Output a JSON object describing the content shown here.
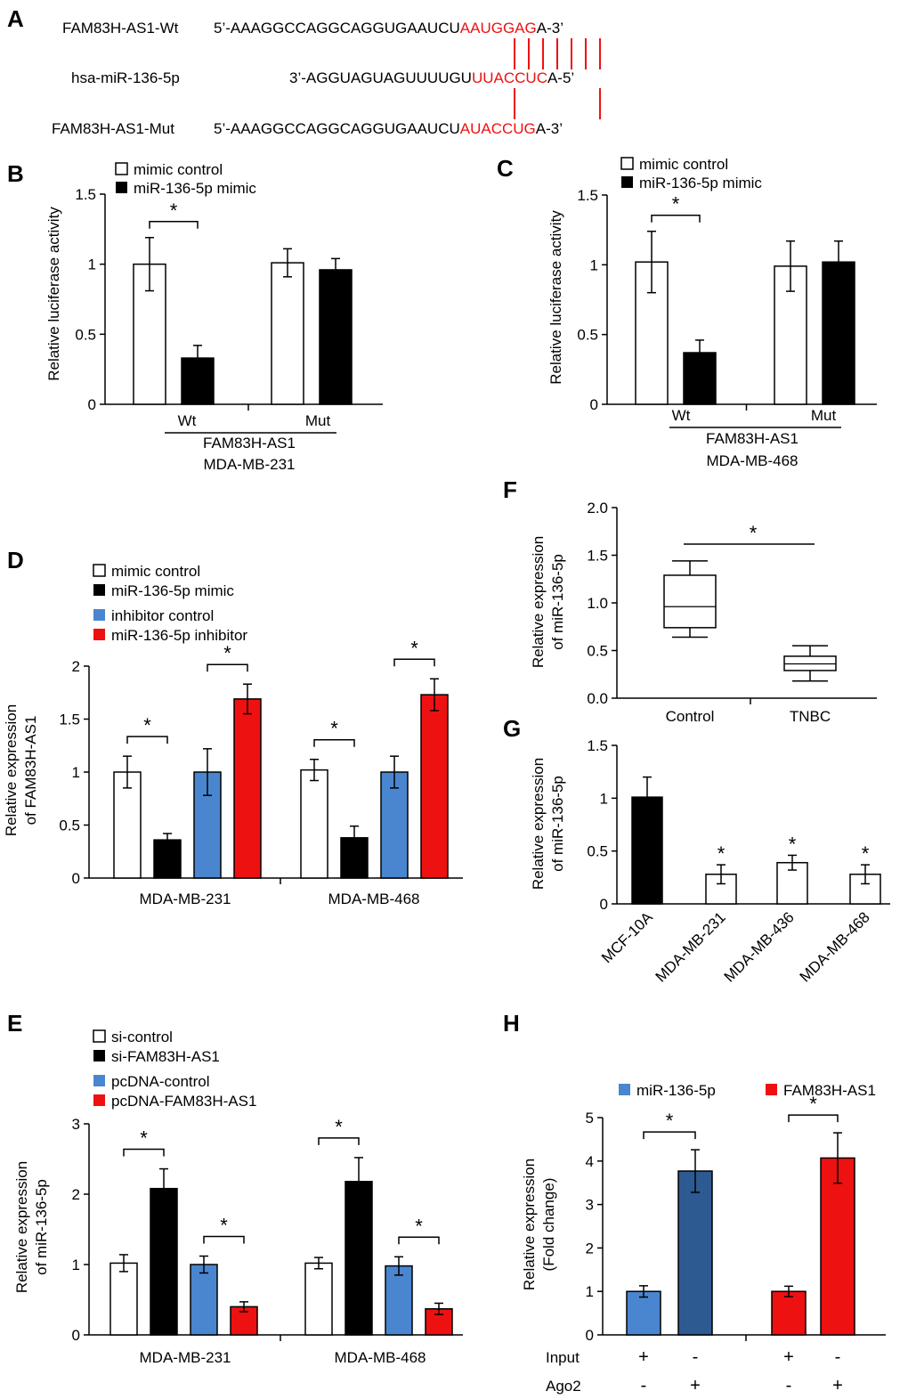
{
  "colors": {
    "white": "#ffffff",
    "black": "#000000",
    "blue": "#4a86cf",
    "red": "#ee1111",
    "darkblue": "#2e5a92",
    "match": "#ee1111"
  },
  "panel_labels": {
    "a": "A",
    "b": "B",
    "c": "C",
    "d": "D",
    "e": "E",
    "f": "F",
    "g": "G",
    "h": "H"
  },
  "panel_a": {
    "wt_label": "FAM83H-AS1-Wt",
    "wt_prefix": "5’-AAAGGCCAGGCAGGUGAAUCU",
    "wt_site": "AAUGGAG",
    "wt_suffix": "A-3’",
    "mir_label": "hsa-miR-136-5p",
    "mir_prefix": "3’-AGGUAGUAGUUUUGU",
    "mir_site": "UUACCUC",
    "mir_suffix": "A-5’",
    "mut_label": "FAM83H-AS1-Mut",
    "mut_prefix": "5’-AAAGGCCAGGCAGGUGAAUCU",
    "mut_site": "AUACCUG",
    "mut_suffix": "A-3’"
  },
  "chart_data": [
    {
      "id": "B",
      "type": "bar",
      "ylabel": "Relative luciferase  activity",
      "ylim": [
        0,
        1.5
      ],
      "yticks": [
        "0",
        "0.5",
        "1",
        "1.5"
      ],
      "ytick_values": [
        0,
        0.5,
        1,
        1.5
      ],
      "categories": [
        "Wt",
        "Mut"
      ],
      "series": [
        {
          "name": "mimic control",
          "color": "#ffffff",
          "values": [
            1.0,
            1.01
          ],
          "errors": [
            0.19,
            0.1
          ]
        },
        {
          "name": "miR-136-5p mimic",
          "color": "#000000",
          "values": [
            0.33,
            0.96
          ],
          "errors": [
            0.09,
            0.08
          ]
        }
      ],
      "group_label": "FAM83H-AS1",
      "cell_line": "MDA-MB-231",
      "significance": [
        {
          "category": 0,
          "label": "*"
        }
      ]
    },
    {
      "id": "C",
      "type": "bar",
      "ylabel": "Relative luciferase  activity",
      "ylim": [
        0,
        1.5
      ],
      "yticks": [
        "0",
        "0.5",
        "1",
        "1.5"
      ],
      "ytick_values": [
        0,
        0.5,
        1,
        1.5
      ],
      "categories": [
        "Wt",
        "Mut"
      ],
      "series": [
        {
          "name": "mimic control",
          "color": "#ffffff",
          "values": [
            1.02,
            0.99
          ],
          "errors": [
            0.22,
            0.18
          ]
        },
        {
          "name": "miR-136-5p mimic",
          "color": "#000000",
          "values": [
            0.37,
            1.02
          ],
          "errors": [
            0.09,
            0.15
          ]
        }
      ],
      "group_label": "FAM83H-AS1",
      "cell_line": "MDA-MB-468",
      "significance": [
        {
          "category": 0,
          "label": "*"
        }
      ]
    },
    {
      "id": "D",
      "type": "bar",
      "ylabel_line1": "Relative expression",
      "ylabel_line2": "of FAM83H-AS1",
      "ylim": [
        0,
        2
      ],
      "yticks": [
        "0",
        "0.5",
        "1",
        "1.5",
        "2"
      ],
      "ytick_values": [
        0,
        0.5,
        1,
        1.5,
        2
      ],
      "categories": [
        "MDA-MB-231",
        "MDA-MB-468"
      ],
      "series": [
        {
          "name": "mimic control",
          "color": "#ffffff",
          "values": [
            1.0,
            1.02
          ],
          "errors": [
            0.15,
            0.1
          ]
        },
        {
          "name": "miR-136-5p mimic",
          "color": "#000000",
          "values": [
            0.36,
            0.38
          ],
          "errors": [
            0.06,
            0.11
          ]
        },
        {
          "name": "inhibitor control",
          "color": "#4a86cf",
          "values": [
            1.0,
            1.0
          ],
          "errors": [
            0.22,
            0.15
          ]
        },
        {
          "name": "miR-136-5p inhibitor",
          "color": "#ee1111",
          "values": [
            1.69,
            1.73
          ],
          "errors": [
            0.14,
            0.15
          ]
        }
      ],
      "significance": [
        {
          "category": 0,
          "pair": [
            0,
            1
          ],
          "label": "*"
        },
        {
          "category": 0,
          "pair": [
            2,
            3
          ],
          "label": "*"
        },
        {
          "category": 1,
          "pair": [
            0,
            1
          ],
          "label": "*"
        },
        {
          "category": 1,
          "pair": [
            2,
            3
          ],
          "label": "*"
        }
      ]
    },
    {
      "id": "E",
      "type": "bar",
      "ylabel_line1": "Relative expression",
      "ylabel_line2": "of miR-136-5p",
      "ylim": [
        0,
        3
      ],
      "yticks": [
        "0",
        "1",
        "2",
        "3"
      ],
      "ytick_values": [
        0,
        1,
        2,
        3
      ],
      "categories": [
        "MDA-MB-231",
        "MDA-MB-468"
      ],
      "series": [
        {
          "name": "si-control",
          "color": "#ffffff",
          "values": [
            1.02,
            1.02
          ],
          "errors": [
            0.12,
            0.08
          ]
        },
        {
          "name": "si-FAM83H-AS1",
          "color": "#000000",
          "values": [
            2.08,
            2.18
          ],
          "errors": [
            0.28,
            0.34
          ]
        },
        {
          "name": "pcDNA-control",
          "color": "#4a86cf",
          "values": [
            1.0,
            0.98
          ],
          "errors": [
            0.12,
            0.13
          ]
        },
        {
          "name": "pcDNA-FAM83H-AS1",
          "color": "#ee1111",
          "values": [
            0.4,
            0.37
          ],
          "errors": [
            0.07,
            0.08
          ]
        }
      ],
      "significance": [
        {
          "category": 0,
          "pair": [
            0,
            1
          ],
          "label": "*"
        },
        {
          "category": 0,
          "pair": [
            2,
            3
          ],
          "label": "*"
        },
        {
          "category": 1,
          "pair": [
            0,
            1
          ],
          "label": "*"
        },
        {
          "category": 1,
          "pair": [
            2,
            3
          ],
          "label": "*"
        }
      ]
    },
    {
      "id": "F",
      "type": "box",
      "ylabel_line1": "Relative expression",
      "ylabel_line2": "of miR-136-5p",
      "ylim": [
        0,
        2.0
      ],
      "yticks": [
        "0.0",
        "0.5",
        "1.0",
        "1.5",
        "2.0"
      ],
      "ytick_values": [
        0,
        0.5,
        1.0,
        1.5,
        2.0
      ],
      "categories": [
        "Control",
        "TNBC"
      ],
      "boxes": [
        {
          "min": 0.64,
          "q1": 0.74,
          "median": 0.96,
          "q3": 1.29,
          "max": 1.44
        },
        {
          "min": 0.18,
          "q1": 0.29,
          "median": 0.36,
          "q3": 0.44,
          "max": 0.55
        }
      ],
      "significance": "*"
    },
    {
      "id": "G",
      "type": "bar",
      "ylabel_line1": "Relative expression",
      "ylabel_line2": "of miR-136-5p",
      "ylim": [
        0,
        1.5
      ],
      "yticks": [
        "0",
        "0.5",
        "1",
        "1.5"
      ],
      "ytick_values": [
        0,
        0.5,
        1,
        1.5
      ],
      "categories": [
        "MCF-10A",
        "MDA-MB-231",
        "MDA-MB-436",
        "MDA-MB-468"
      ],
      "values": [
        1.01,
        0.28,
        0.39,
        0.28
      ],
      "errors": [
        0.19,
        0.09,
        0.07,
        0.09
      ],
      "bar_colors": [
        "#000000",
        "#ffffff",
        "#ffffff",
        "#ffffff"
      ],
      "labels": [
        "",
        "*",
        "*",
        "*"
      ]
    },
    {
      "id": "H",
      "type": "bar",
      "ylabel_line1": "Relative expression",
      "ylabel_line2": "(Fold change)",
      "ylim": [
        0,
        5
      ],
      "yticks": [
        "0",
        "1",
        "2",
        "3",
        "4",
        "5"
      ],
      "ytick_values": [
        0,
        1,
        2,
        3,
        4,
        5
      ],
      "legend": [
        {
          "name": "miR-136-5p",
          "color": "#4a86cf"
        },
        {
          "name": "FAM83H-AS1",
          "color": "#ee1111"
        }
      ],
      "bars": [
        {
          "series": "miR-136-5p",
          "condition": "Input",
          "value": 1.0,
          "error": 0.13,
          "color": "#4a86cf"
        },
        {
          "series": "miR-136-5p",
          "condition": "Ago2",
          "value": 3.77,
          "error": 0.49,
          "color": "#2e5a92"
        },
        {
          "series": "FAM83H-AS1",
          "condition": "Input",
          "value": 1.0,
          "error": 0.12,
          "color": "#ee1111"
        },
        {
          "series": "FAM83H-AS1",
          "condition": "Ago2",
          "value": 4.07,
          "error": 0.58,
          "color": "#ee1111"
        }
      ],
      "row_labels": [
        "Input",
        "Ago2"
      ],
      "row_marks": [
        [
          "+",
          "-",
          "+",
          "-"
        ],
        [
          "-",
          "+",
          "-",
          "+"
        ]
      ],
      "significance": [
        "*",
        "*"
      ]
    }
  ]
}
